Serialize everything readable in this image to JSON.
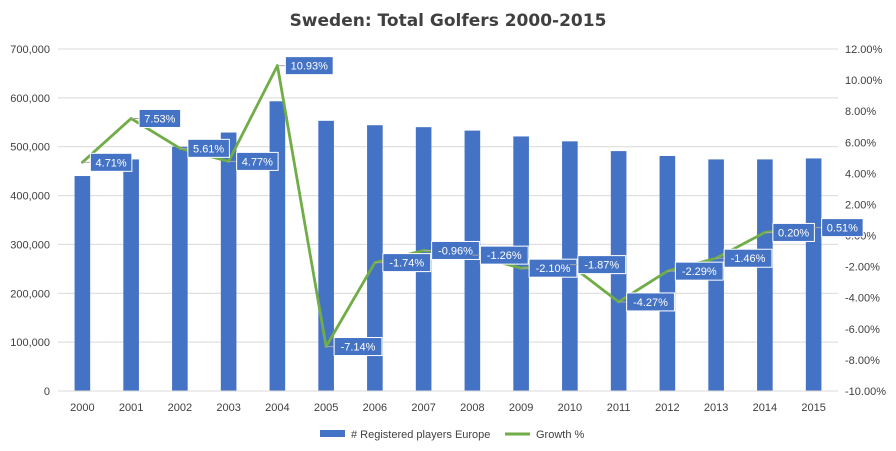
{
  "chart_data": {
    "type": "bar+line",
    "title": "Sweden: Total Golfers 2000-2015",
    "categories": [
      "2000",
      "2001",
      "2002",
      "2003",
      "2004",
      "2005",
      "2006",
      "2007",
      "2008",
      "2009",
      "2010",
      "2011",
      "2012",
      "2013",
      "2014",
      "2015"
    ],
    "series": [
      {
        "name": "# Registered players Europe",
        "type": "bar",
        "axis": "left",
        "color": "#4472C4",
        "values": [
          440000,
          474000,
          500000,
          529000,
          593000,
          553000,
          544000,
          540000,
          533000,
          521000,
          511000,
          491000,
          481000,
          474000,
          474000,
          476000
        ]
      },
      {
        "name": "Growth %",
        "type": "line",
        "axis": "right",
        "color": "#70AD47",
        "values": [
          4.71,
          7.53,
          5.61,
          4.77,
          10.93,
          -7.14,
          -1.74,
          -0.96,
          -1.26,
          -2.1,
          -1.87,
          -4.27,
          -2.29,
          -1.46,
          0.2,
          0.51
        ],
        "labels": [
          "4.71%",
          "7.53%",
          "5.61%",
          "4.77%",
          "10.93%",
          "-7.14%",
          "-1.74%",
          "-0.96%",
          "-1.26%",
          "-2.10%",
          "-1.87%",
          "-4.27%",
          "-2.29%",
          "-1.46%",
          "0.20%",
          "0.51%"
        ]
      }
    ],
    "y_left": {
      "lim": [
        0,
        700000
      ],
      "ticks": [
        0,
        100000,
        200000,
        300000,
        400000,
        500000,
        600000,
        700000
      ],
      "tick_labels": [
        "0",
        "100,000",
        "200,000",
        "300,000",
        "400,000",
        "500,000",
        "600,000",
        "700,000"
      ]
    },
    "y_right": {
      "lim": [
        -10,
        12
      ],
      "ticks": [
        -10,
        -8,
        -6,
        -4,
        -2,
        0,
        2,
        4,
        6,
        8,
        10,
        12
      ],
      "tick_labels": [
        "-10.00%",
        "-8.00%",
        "-6.00%",
        "-4.00%",
        "-2.00%",
        "0.00%",
        "2.00%",
        "4.00%",
        "6.00%",
        "8.00%",
        "10.00%",
        "12.00%"
      ]
    },
    "grid": true,
    "legend": "bottom-center",
    "label_box_color": "#4472C4"
  }
}
